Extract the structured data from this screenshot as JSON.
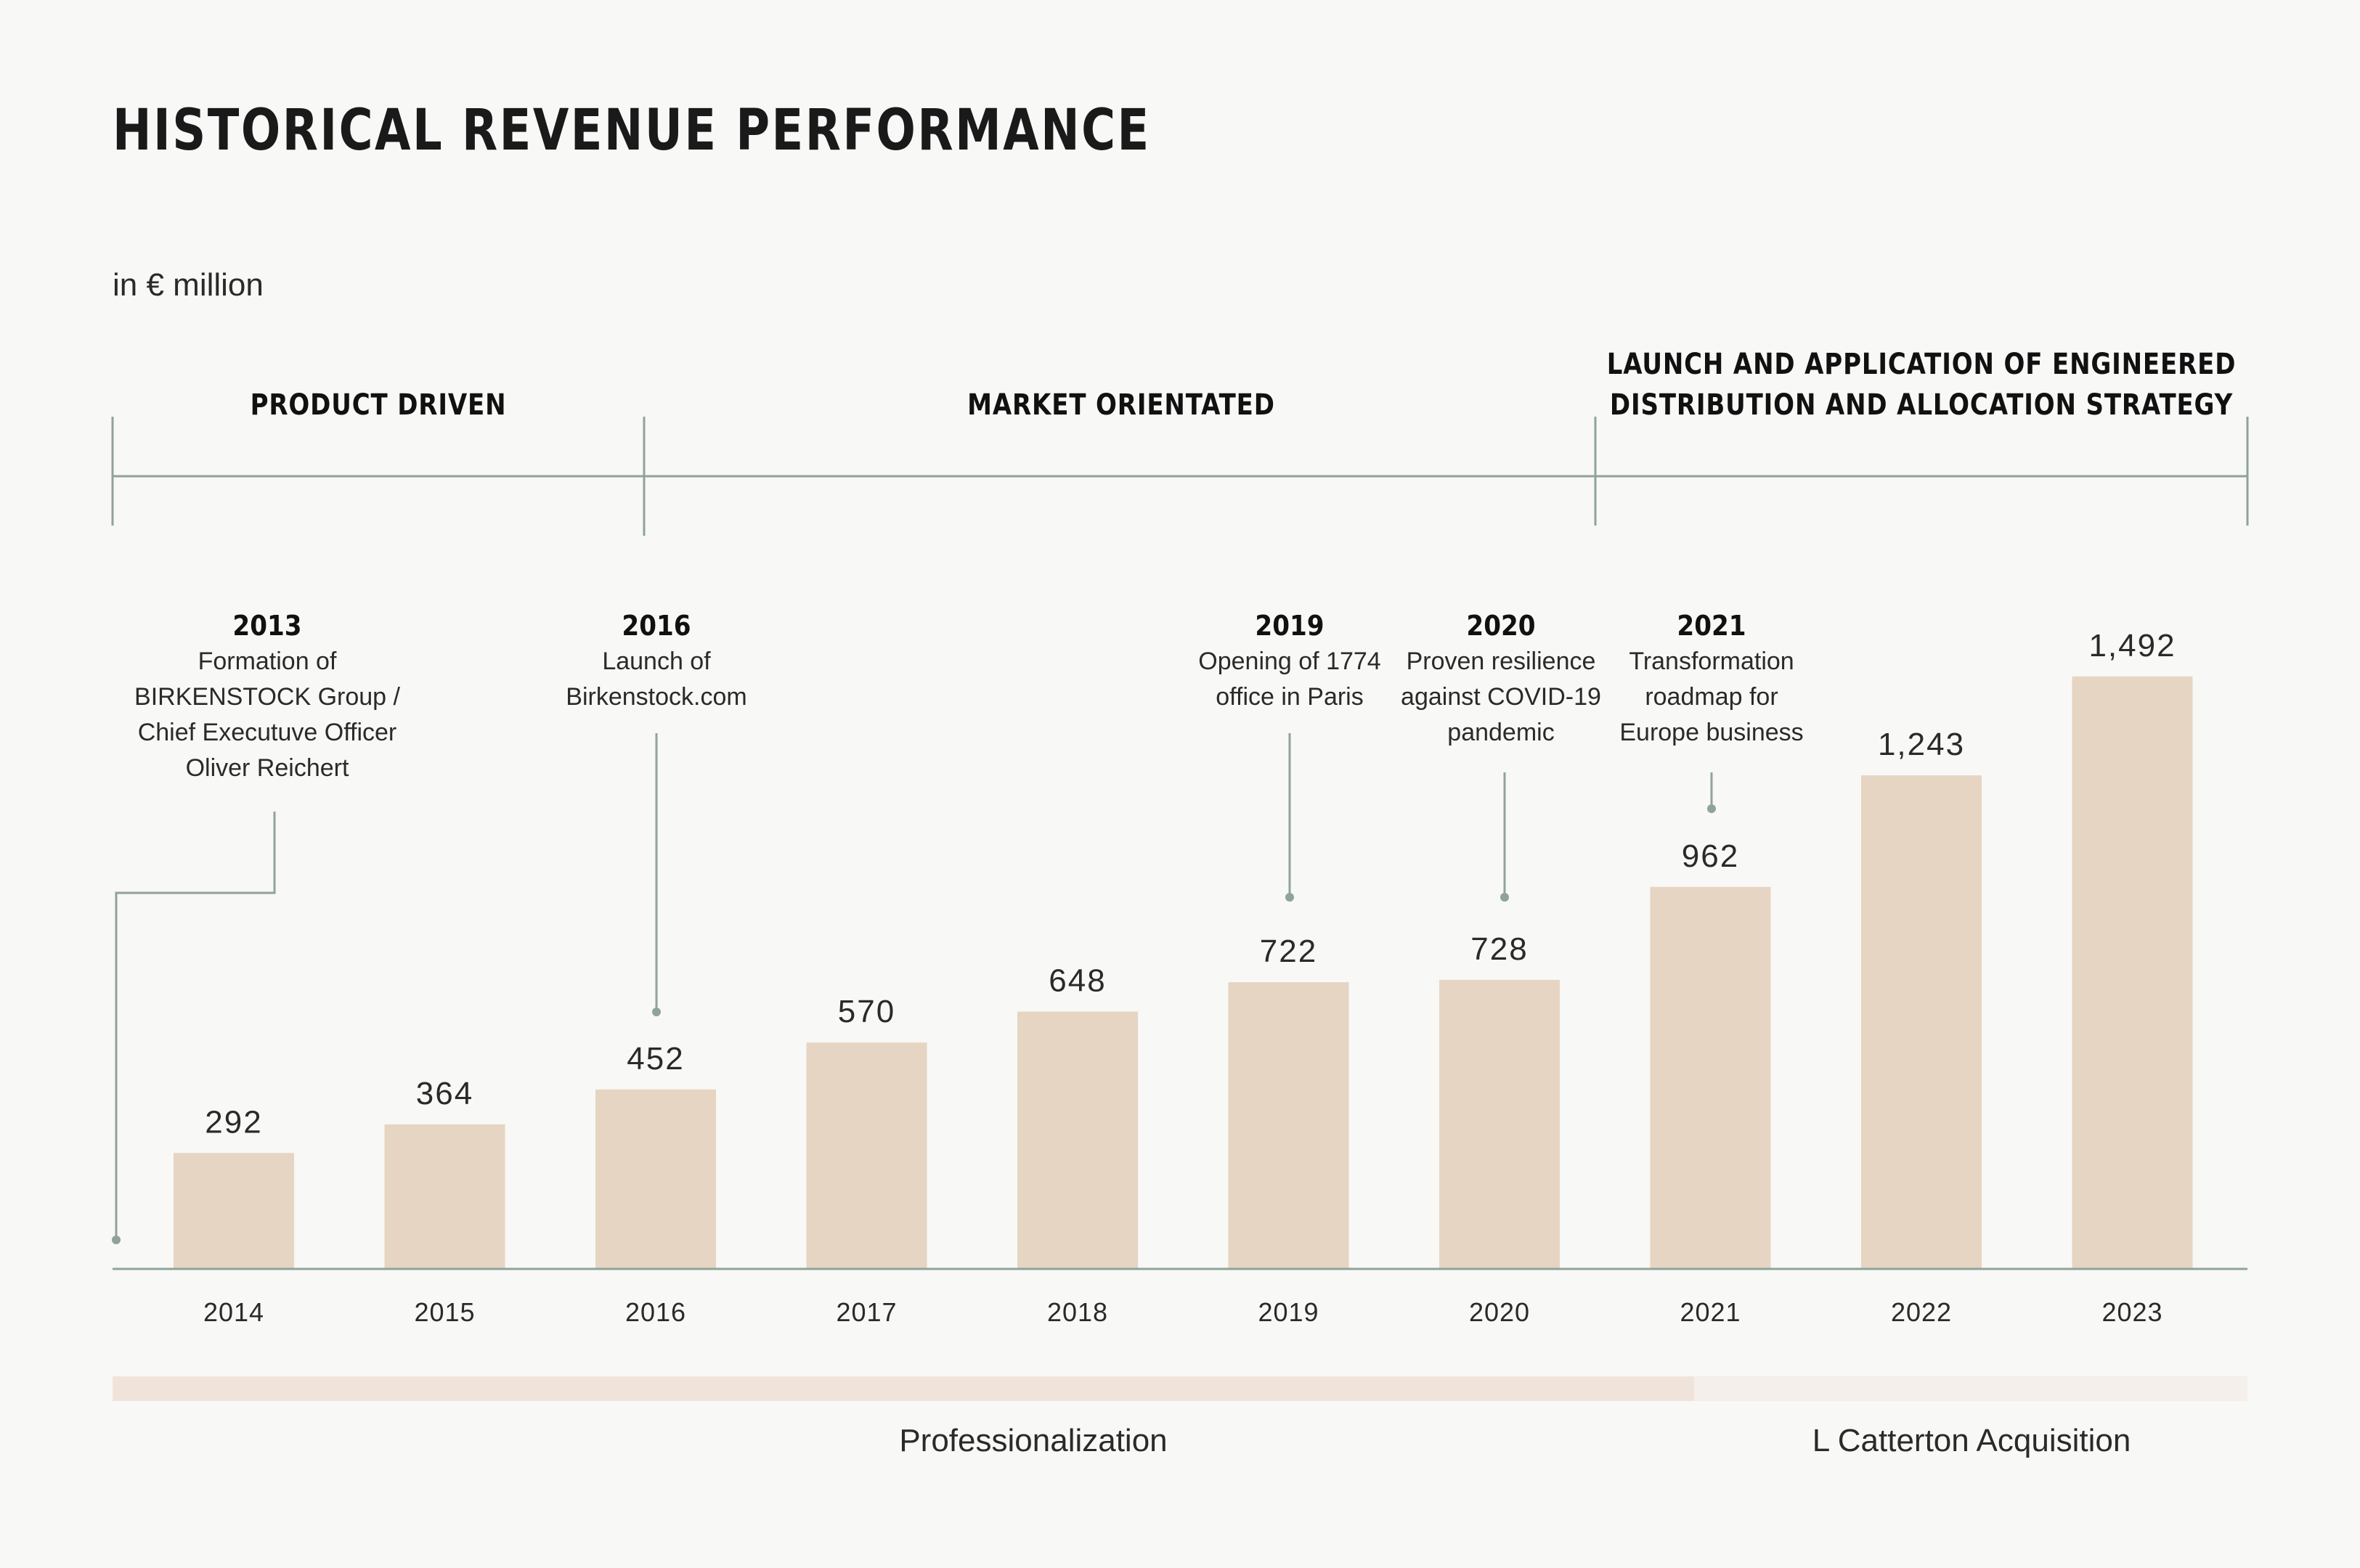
{
  "title": "HISTORICAL REVENUE PERFORMANCE",
  "unit": "in € million",
  "phases": [
    {
      "label": [
        "PRODUCT DRIVEN"
      ]
    },
    {
      "label": [
        "MARKET ORIENTATED"
      ]
    },
    {
      "label": [
        "LAUNCH AND APPLICATION OF ENGINEERED",
        "DISTRIBUTION AND ALLOCATION STRATEGY"
      ]
    }
  ],
  "milestones": [
    {
      "year": "2013",
      "lines": [
        "Formation of",
        "BIRKENSTOCK Group /",
        "Chief Executuve Officer",
        "Oliver Reichert"
      ]
    },
    {
      "year": "2016",
      "lines": [
        "Launch of",
        "Birkenstock.com"
      ]
    },
    {
      "year": "2019",
      "lines": [
        "Opening of 1774",
        "office in Paris"
      ]
    },
    {
      "year": "2020",
      "lines": [
        "Proven resilience",
        "against COVID-19",
        "pandemic"
      ]
    },
    {
      "year": "2021",
      "lines": [
        "Transformation",
        "roadmap for",
        "Europe business"
      ]
    }
  ],
  "bottom_labels": {
    "professionalization": "Professionalization",
    "acquisition": "L Catterton Acquisition"
  },
  "colors": {
    "bar": "#e6d5c3",
    "line": "#8fa39a",
    "band_main": "#f0e4da",
    "band_light": "#f4efea"
  },
  "chart_data": {
    "type": "bar",
    "title": "HISTORICAL REVENUE PERFORMANCE",
    "ylabel": "in € million",
    "xlabel": "",
    "categories": [
      "2014",
      "2015",
      "2016",
      "2017",
      "2018",
      "2019",
      "2020",
      "2021",
      "2022",
      "2023"
    ],
    "values": [
      292,
      364,
      452,
      570,
      648,
      722,
      728,
      962,
      1243,
      1492
    ],
    "value_labels": [
      "292",
      "364",
      "452",
      "570",
      "648",
      "722",
      "728",
      "962",
      "1,243",
      "1,492"
    ],
    "ylim": [
      0,
      1600
    ],
    "grid": false
  }
}
